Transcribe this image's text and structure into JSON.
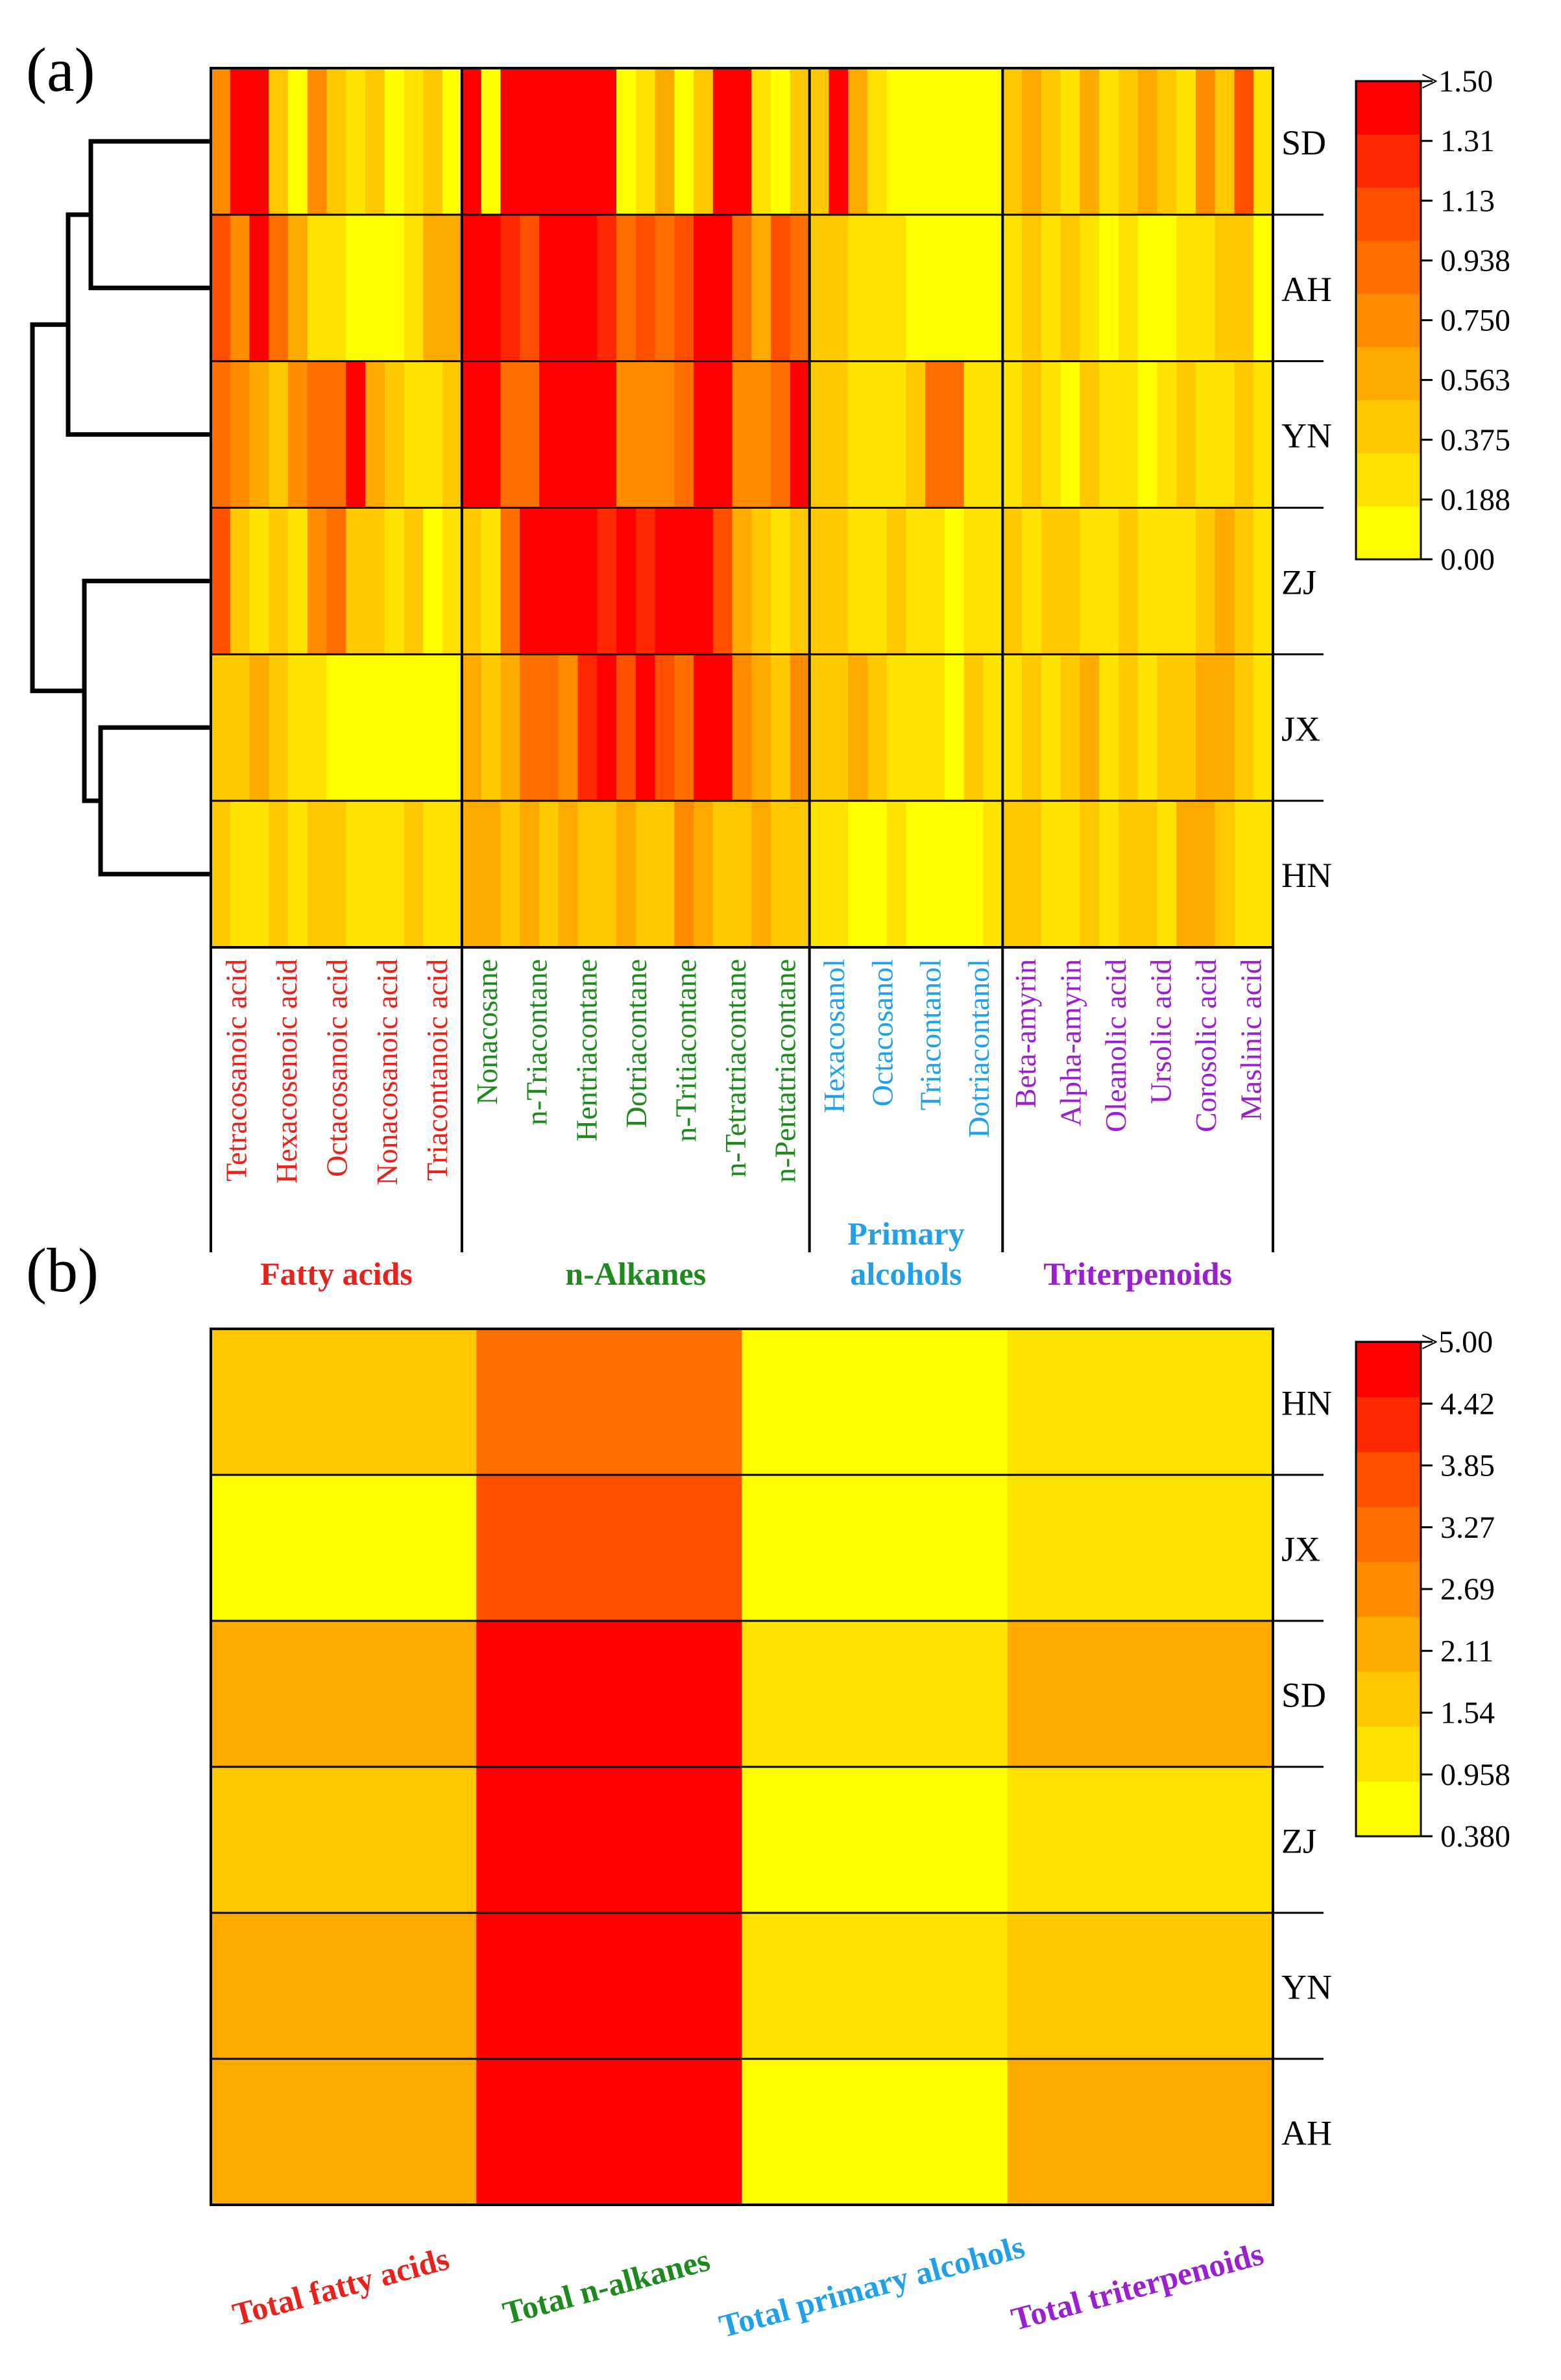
{
  "colors": {
    "scale": [
      "#FFFF00",
      "#FFE300",
      "#FFC800",
      "#FFAA00",
      "#FF8C00",
      "#FF6E00",
      "#FF5000",
      "#FF2800",
      "#FF0000"
    ],
    "border": "#000000",
    "fatty": "#E8211A",
    "alkanes": "#1E8A1E",
    "alcohols": "#21A0E8",
    "triterpenoids": "#9A1FD0"
  },
  "chart_data": [
    {
      "type": "heatmap",
      "panel_label": "(a)",
      "rows": [
        "SD",
        "AH",
        "YN",
        "ZJ",
        "JX",
        "HN"
      ],
      "n_columns": 55,
      "column_groups": [
        {
          "name": "Fatty acids",
          "color_key": "fatty",
          "columns": 13,
          "tick_labels": [
            "Tetracosanoic acid",
            "Hexacosenoic acid",
            "Octacosanoic acid",
            "Nonacosanoic acid",
            "Triacontanoic acid"
          ]
        },
        {
          "name": "n-Alkanes",
          "color_key": "alkanes",
          "columns": 18,
          "tick_labels": [
            "Nonacosane",
            "n-Triacontane",
            "Hentriacontane",
            "Dotriacontane",
            "n-Tritiacontane",
            "n-Tetratriacontane",
            "n-Pentatriacontane"
          ]
        },
        {
          "name": "Primary alcohols",
          "name_lines": [
            "Primary",
            "alcohols"
          ],
          "color_key": "alcohols",
          "columns": 10,
          "tick_labels": [
            "Hexacosanol",
            "Octacosanol",
            "Triacontanol",
            "Dotriacontanol"
          ]
        },
        {
          "name": "Triterpenoids",
          "color_key": "triterpenoids",
          "columns": 14,
          "tick_labels": [
            "Beta-amyrin",
            "Alpha-amyrin",
            "Oleanolic acid",
            "Ursolic acid",
            "Corosolic acid",
            "Maslinic acid"
          ]
        }
      ],
      "values": [
        [
          0.75,
          1.5,
          1.5,
          0.375,
          0.0,
          0.75,
          0.375,
          0.188,
          0.375,
          0.0,
          0.188,
          0.375,
          0.0,
          1.5,
          0.0,
          1.5,
          1.5,
          1.5,
          1.5,
          1.5,
          1.5,
          0.0,
          0.188,
          0.563,
          0.0,
          0.375,
          1.5,
          1.5,
          0.188,
          0.0,
          0.375,
          0.375,
          1.5,
          0.563,
          0.188,
          0.0,
          0.0,
          0.0,
          0.0,
          0.0,
          0.0,
          0.375,
          0.563,
          0.375,
          0.188,
          0.563,
          0.188,
          0.375,
          0.563,
          0.375,
          0.188,
          0.75,
          0.375,
          1.13,
          0.188
        ],
        [
          1.13,
          0.75,
          1.5,
          0.938,
          0.563,
          0.188,
          0.188,
          0.0,
          0.0,
          0.0,
          0.188,
          0.563,
          0.563,
          1.5,
          1.5,
          1.31,
          1.13,
          1.5,
          1.5,
          1.5,
          1.31,
          0.938,
          1.13,
          0.938,
          1.13,
          1.5,
          1.5,
          0.938,
          0.563,
          1.13,
          0.938,
          0.375,
          0.375,
          0.188,
          0.188,
          0.188,
          0.0,
          0.0,
          0.0,
          0.0,
          0.0,
          0.188,
          0.375,
          0.188,
          0.375,
          0.188,
          0.0,
          0.188,
          0.0,
          0.0,
          0.188,
          0.188,
          0.375,
          0.375,
          0.0
        ],
        [
          0.938,
          0.75,
          0.563,
          0.375,
          0.75,
          0.938,
          0.938,
          1.5,
          0.563,
          0.375,
          0.188,
          0.188,
          0.375,
          1.5,
          1.5,
          0.938,
          0.938,
          1.5,
          1.5,
          1.5,
          1.5,
          0.75,
          0.75,
          0.75,
          0.938,
          1.5,
          1.5,
          0.75,
          0.75,
          0.938,
          1.5,
          0.375,
          0.375,
          0.188,
          0.188,
          0.188,
          0.375,
          0.938,
          0.938,
          0.188,
          0.188,
          0.188,
          0.375,
          0.188,
          0.0,
          0.375,
          0.188,
          0.188,
          0.0,
          0.188,
          0.375,
          0.188,
          0.188,
          0.375,
          0.188
        ],
        [
          1.13,
          0.375,
          0.188,
          0.375,
          0.188,
          0.75,
          0.938,
          0.375,
          0.375,
          0.188,
          0.375,
          0.0,
          0.188,
          0.375,
          0.188,
          0.938,
          1.5,
          1.5,
          1.5,
          1.5,
          1.31,
          1.5,
          1.31,
          1.5,
          1.5,
          1.5,
          1.13,
          0.563,
          0.375,
          0.188,
          0.375,
          0.375,
          0.375,
          0.188,
          0.188,
          0.375,
          0.188,
          0.188,
          0.0,
          0.188,
          0.188,
          0.375,
          0.188,
          0.375,
          0.375,
          0.188,
          0.188,
          0.375,
          0.188,
          0.188,
          0.188,
          0.375,
          0.563,
          0.375,
          0.188
        ],
        [
          0.375,
          0.375,
          0.563,
          0.375,
          0.188,
          0.188,
          0.0,
          0.0,
          0.0,
          0.0,
          0.0,
          0.0,
          0.0,
          0.563,
          0.375,
          0.563,
          0.938,
          0.938,
          0.75,
          1.31,
          1.5,
          1.13,
          1.5,
          1.13,
          0.938,
          1.5,
          1.5,
          0.75,
          0.563,
          0.375,
          0.75,
          0.375,
          0.375,
          0.563,
          0.375,
          0.188,
          0.188,
          0.188,
          0.0,
          0.375,
          0.188,
          0.188,
          0.375,
          0.188,
          0.375,
          0.563,
          0.188,
          0.375,
          0.188,
          0.375,
          0.375,
          0.563,
          0.563,
          0.375,
          0.188
        ],
        [
          0.375,
          0.188,
          0.188,
          0.375,
          0.188,
          0.375,
          0.375,
          0.188,
          0.188,
          0.188,
          0.375,
          0.188,
          0.188,
          0.563,
          0.563,
          0.375,
          0.563,
          0.375,
          0.563,
          0.375,
          0.375,
          0.563,
          0.375,
          0.375,
          0.75,
          0.563,
          0.375,
          0.375,
          0.563,
          0.375,
          0.375,
          0.188,
          0.188,
          0.0,
          0.0,
          0.188,
          0.0,
          0.0,
          0.0,
          0.0,
          0.188,
          0.375,
          0.375,
          0.188,
          0.188,
          0.375,
          0.188,
          0.375,
          0.375,
          0.188,
          0.563,
          0.563,
          0.375,
          0.188,
          0.188
        ]
      ],
      "dendrogram": "((SD,AH),YN),(ZJ,(JX,HN))",
      "colorbar": {
        "ticks": [
          "0.00",
          "0.188",
          "0.375",
          "0.563",
          "0.750",
          "0.938",
          "1.13",
          "1.31",
          "1.50"
        ],
        "top_label": ">1.50"
      }
    },
    {
      "type": "heatmap",
      "panel_label": "(b)",
      "rows": [
        "HN",
        "JX",
        "SD",
        "ZJ",
        "YN",
        "AH"
      ],
      "columns": [
        "Total fatty acids",
        "Total n-alkanes",
        "Total primary alcohols",
        "Total triterpenoids"
      ],
      "column_color_keys": [
        "fatty",
        "alkanes",
        "alcohols",
        "triterpenoids"
      ],
      "values": [
        [
          1.8,
          3.3,
          0.45,
          1.2
        ],
        [
          0.45,
          3.6,
          0.5,
          1.2
        ],
        [
          2.3,
          4.8,
          1.2,
          2.4
        ],
        [
          1.8,
          4.8,
          0.6,
          1.3
        ],
        [
          2.3,
          4.8,
          1.2,
          1.8
        ],
        [
          2.3,
          4.8,
          0.5,
          2.0
        ]
      ],
      "colorbar": {
        "ticks": [
          "0.380",
          "0.958",
          "1.54",
          "2.11",
          "2.69",
          "3.27",
          "3.85",
          "4.42",
          "5.00"
        ],
        "top_label": ">5.00"
      }
    }
  ]
}
